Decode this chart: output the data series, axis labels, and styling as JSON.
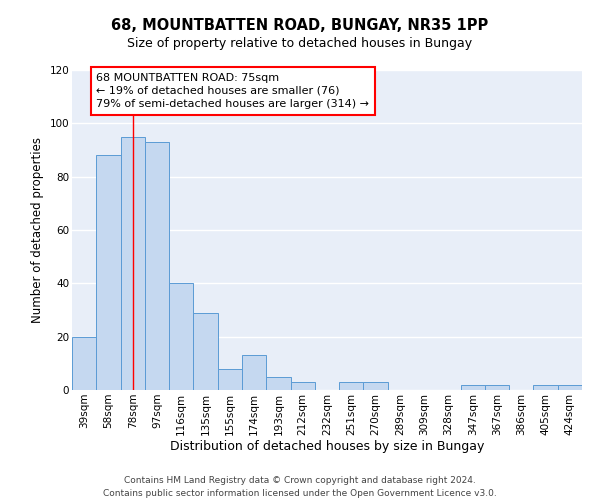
{
  "title": "68, MOUNTBATTEN ROAD, BUNGAY, NR35 1PP",
  "subtitle": "Size of property relative to detached houses in Bungay",
  "xlabel": "Distribution of detached houses by size in Bungay",
  "ylabel": "Number of detached properties",
  "categories": [
    "39sqm",
    "58sqm",
    "78sqm",
    "97sqm",
    "116sqm",
    "135sqm",
    "155sqm",
    "174sqm",
    "193sqm",
    "212sqm",
    "232sqm",
    "251sqm",
    "270sqm",
    "289sqm",
    "309sqm",
    "328sqm",
    "347sqm",
    "367sqm",
    "386sqm",
    "405sqm",
    "424sqm"
  ],
  "values": [
    20,
    88,
    95,
    93,
    40,
    29,
    8,
    13,
    5,
    3,
    0,
    3,
    3,
    0,
    0,
    0,
    2,
    2,
    0,
    2,
    2
  ],
  "bar_color": "#c5d8f0",
  "bar_edge_color": "#5b9bd5",
  "red_line_index": 2,
  "annotation_text": "68 MOUNTBATTEN ROAD: 75sqm\n← 19% of detached houses are smaller (76)\n79% of semi-detached houses are larger (314) →",
  "annotation_box_color": "white",
  "annotation_box_edge_color": "red",
  "ylim": [
    0,
    120
  ],
  "yticks": [
    0,
    20,
    40,
    60,
    80,
    100,
    120
  ],
  "background_color": "#e8eef8",
  "grid_color": "white",
  "footer": "Contains HM Land Registry data © Crown copyright and database right 2024.\nContains public sector information licensed under the Open Government Licence v3.0.",
  "title_fontsize": 10.5,
  "subtitle_fontsize": 9,
  "xlabel_fontsize": 9,
  "ylabel_fontsize": 8.5,
  "tick_fontsize": 7.5,
  "annotation_fontsize": 8,
  "footer_fontsize": 6.5
}
